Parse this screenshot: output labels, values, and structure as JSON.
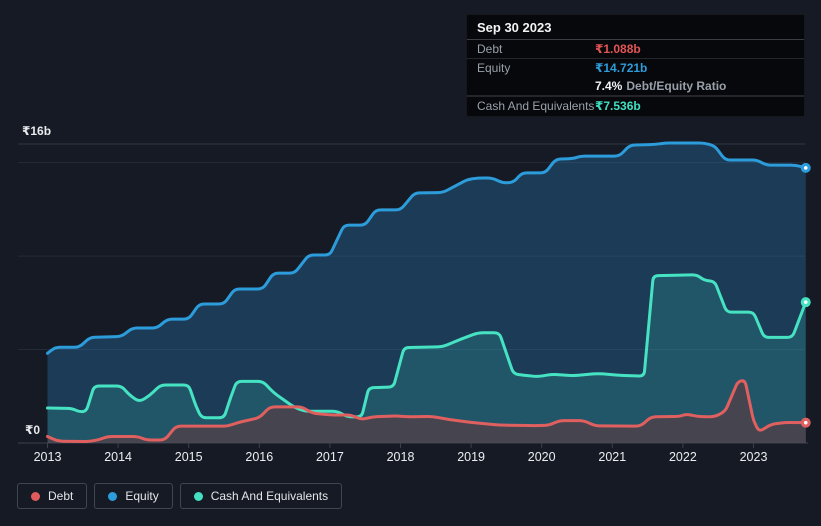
{
  "tooltip": {
    "date": "Sep 30 2023",
    "rows": [
      {
        "label": "Debt",
        "value": "₹1.088b",
        "series": "debt",
        "color": "#e25555"
      },
      {
        "label": "Equity",
        "value": "₹14.721b",
        "series": "equity",
        "color": "#2d9cdb"
      },
      {
        "label": "Cash And Equivalents",
        "value": "₹7.536b",
        "series": "cash",
        "color": "#3fe0c1"
      }
    ],
    "ratio_value": "7.4%",
    "ratio_label": "Debt/Equity Ratio"
  },
  "y_axis": {
    "top_label": "₹16b",
    "bottom_label": "₹0"
  },
  "legend": [
    {
      "label": "Debt",
      "color": "#e05c5c"
    },
    {
      "label": "Equity",
      "color": "#2d9cdb"
    },
    {
      "label": "Cash And Equivalents",
      "color": "#43e0c2"
    }
  ],
  "colors": {
    "background": "#151a24",
    "gridline": "#242b38",
    "gridline_top": "#2e3543",
    "axis": "#3a4050",
    "tick_text": "#eceff1"
  },
  "chart_data": {
    "type": "area",
    "title": "Debt to Equity History",
    "x_unit": "year",
    "x_ticks": [
      "2013",
      "2014",
      "2015",
      "2016",
      "2017",
      "2018",
      "2019",
      "2020",
      "2021",
      "2022",
      "2023"
    ],
    "x_range": [
      2013.0,
      2023.74
    ],
    "ylim": [
      0,
      16
    ],
    "y_gridlines_b": [
      16,
      15,
      10,
      5,
      0
    ],
    "y_top_label_value": 16,
    "legend_position": "bottom-left",
    "end_markers": true,
    "series": [
      {
        "id": "equity",
        "name": "Equity",
        "color": "#2d9cdb",
        "fill": "rgba(43,130,195,0.32)",
        "points": [
          [
            2013.0,
            4.8
          ],
          [
            2013.05,
            4.95
          ],
          [
            2013.12,
            5.12
          ],
          [
            2013.45,
            5.12
          ],
          [
            2013.6,
            5.65
          ],
          [
            2014.05,
            5.7
          ],
          [
            2014.2,
            6.15
          ],
          [
            2014.55,
            6.15
          ],
          [
            2014.7,
            6.63
          ],
          [
            2015.0,
            6.63
          ],
          [
            2015.15,
            7.44
          ],
          [
            2015.5,
            7.44
          ],
          [
            2015.65,
            8.24
          ],
          [
            2016.05,
            8.24
          ],
          [
            2016.2,
            9.09
          ],
          [
            2016.5,
            9.09
          ],
          [
            2016.7,
            10.06
          ],
          [
            2017.0,
            10.06
          ],
          [
            2017.2,
            11.66
          ],
          [
            2017.5,
            11.66
          ],
          [
            2017.65,
            12.47
          ],
          [
            2018.0,
            12.47
          ],
          [
            2018.2,
            13.38
          ],
          [
            2018.6,
            13.4
          ],
          [
            2018.95,
            14.1
          ],
          [
            2019.1,
            14.18
          ],
          [
            2019.3,
            14.18
          ],
          [
            2019.45,
            13.91
          ],
          [
            2019.6,
            13.95
          ],
          [
            2019.72,
            14.45
          ],
          [
            2020.05,
            14.45
          ],
          [
            2020.2,
            15.19
          ],
          [
            2020.45,
            15.22
          ],
          [
            2020.55,
            15.35
          ],
          [
            2021.1,
            15.35
          ],
          [
            2021.25,
            15.94
          ],
          [
            2021.6,
            15.97
          ],
          [
            2021.75,
            16.05
          ],
          [
            2022.3,
            16.05
          ],
          [
            2022.45,
            15.9
          ],
          [
            2022.6,
            15.14
          ],
          [
            2023.05,
            15.14
          ],
          [
            2023.18,
            14.87
          ],
          [
            2023.6,
            14.87
          ],
          [
            2023.74,
            14.721
          ]
        ]
      },
      {
        "id": "cash",
        "name": "Cash And Equivalents",
        "color": "#46e3c3",
        "fill": "rgba(62,224,190,0.16)",
        "points": [
          [
            2013.0,
            1.87
          ],
          [
            2013.35,
            1.85
          ],
          [
            2013.45,
            1.66
          ],
          [
            2013.55,
            1.7
          ],
          [
            2013.66,
            3.05
          ],
          [
            2014.05,
            3.05
          ],
          [
            2014.15,
            2.6
          ],
          [
            2014.3,
            2.2
          ],
          [
            2014.45,
            2.55
          ],
          [
            2014.6,
            3.1
          ],
          [
            2015.0,
            3.1
          ],
          [
            2015.1,
            2.0
          ],
          [
            2015.18,
            1.35
          ],
          [
            2015.5,
            1.35
          ],
          [
            2015.6,
            2.5
          ],
          [
            2015.68,
            3.3
          ],
          [
            2016.05,
            3.3
          ],
          [
            2016.2,
            2.7
          ],
          [
            2016.5,
            1.9
          ],
          [
            2016.65,
            1.7
          ],
          [
            2017.1,
            1.7
          ],
          [
            2017.25,
            1.4
          ],
          [
            2017.45,
            1.4
          ],
          [
            2017.55,
            2.95
          ],
          [
            2017.9,
            3.0
          ],
          [
            2018.05,
            5.1
          ],
          [
            2018.6,
            5.15
          ],
          [
            2018.85,
            5.55
          ],
          [
            2019.1,
            5.9
          ],
          [
            2019.4,
            5.9
          ],
          [
            2019.6,
            3.7
          ],
          [
            2019.75,
            3.62
          ],
          [
            2019.95,
            3.55
          ],
          [
            2020.15,
            3.68
          ],
          [
            2020.45,
            3.6
          ],
          [
            2020.8,
            3.72
          ],
          [
            2021.1,
            3.62
          ],
          [
            2021.45,
            3.58
          ],
          [
            2021.58,
            8.95
          ],
          [
            2022.2,
            9.0
          ],
          [
            2022.3,
            8.7
          ],
          [
            2022.45,
            8.65
          ],
          [
            2022.62,
            7.0
          ],
          [
            2023.0,
            7.0
          ],
          [
            2023.15,
            5.65
          ],
          [
            2023.55,
            5.65
          ],
          [
            2023.74,
            7.536
          ]
        ]
      },
      {
        "id": "debt",
        "name": "Debt",
        "color": "#e06060",
        "fill": "rgba(90,60,65,0.65)",
        "points": [
          [
            2013.0,
            0.35
          ],
          [
            2013.15,
            0.1
          ],
          [
            2013.6,
            0.08
          ],
          [
            2013.75,
            0.2
          ],
          [
            2013.85,
            0.35
          ],
          [
            2014.28,
            0.35
          ],
          [
            2014.4,
            0.16
          ],
          [
            2014.66,
            0.16
          ],
          [
            2014.82,
            0.9
          ],
          [
            2015.55,
            0.9
          ],
          [
            2015.7,
            1.1
          ],
          [
            2016.0,
            1.35
          ],
          [
            2016.15,
            1.93
          ],
          [
            2016.6,
            1.93
          ],
          [
            2016.75,
            1.6
          ],
          [
            2017.0,
            1.5
          ],
          [
            2017.3,
            1.5
          ],
          [
            2017.45,
            1.25
          ],
          [
            2017.6,
            1.4
          ],
          [
            2017.95,
            1.45
          ],
          [
            2018.1,
            1.4
          ],
          [
            2018.45,
            1.42
          ],
          [
            2018.7,
            1.25
          ],
          [
            2019.0,
            1.1
          ],
          [
            2019.4,
            0.96
          ],
          [
            2019.9,
            0.93
          ],
          [
            2020.1,
            0.95
          ],
          [
            2020.25,
            1.2
          ],
          [
            2020.6,
            1.2
          ],
          [
            2020.75,
            0.92
          ],
          [
            2021.4,
            0.9
          ],
          [
            2021.55,
            1.4
          ],
          [
            2021.95,
            1.42
          ],
          [
            2022.05,
            1.55
          ],
          [
            2022.2,
            1.42
          ],
          [
            2022.45,
            1.4
          ],
          [
            2022.6,
            1.7
          ],
          [
            2022.78,
            3.3
          ],
          [
            2022.88,
            3.35
          ],
          [
            2023.0,
            1.2
          ],
          [
            2023.08,
            0.6
          ],
          [
            2023.25,
            1.0
          ],
          [
            2023.45,
            1.1
          ],
          [
            2023.74,
            1.088
          ]
        ]
      }
    ]
  }
}
